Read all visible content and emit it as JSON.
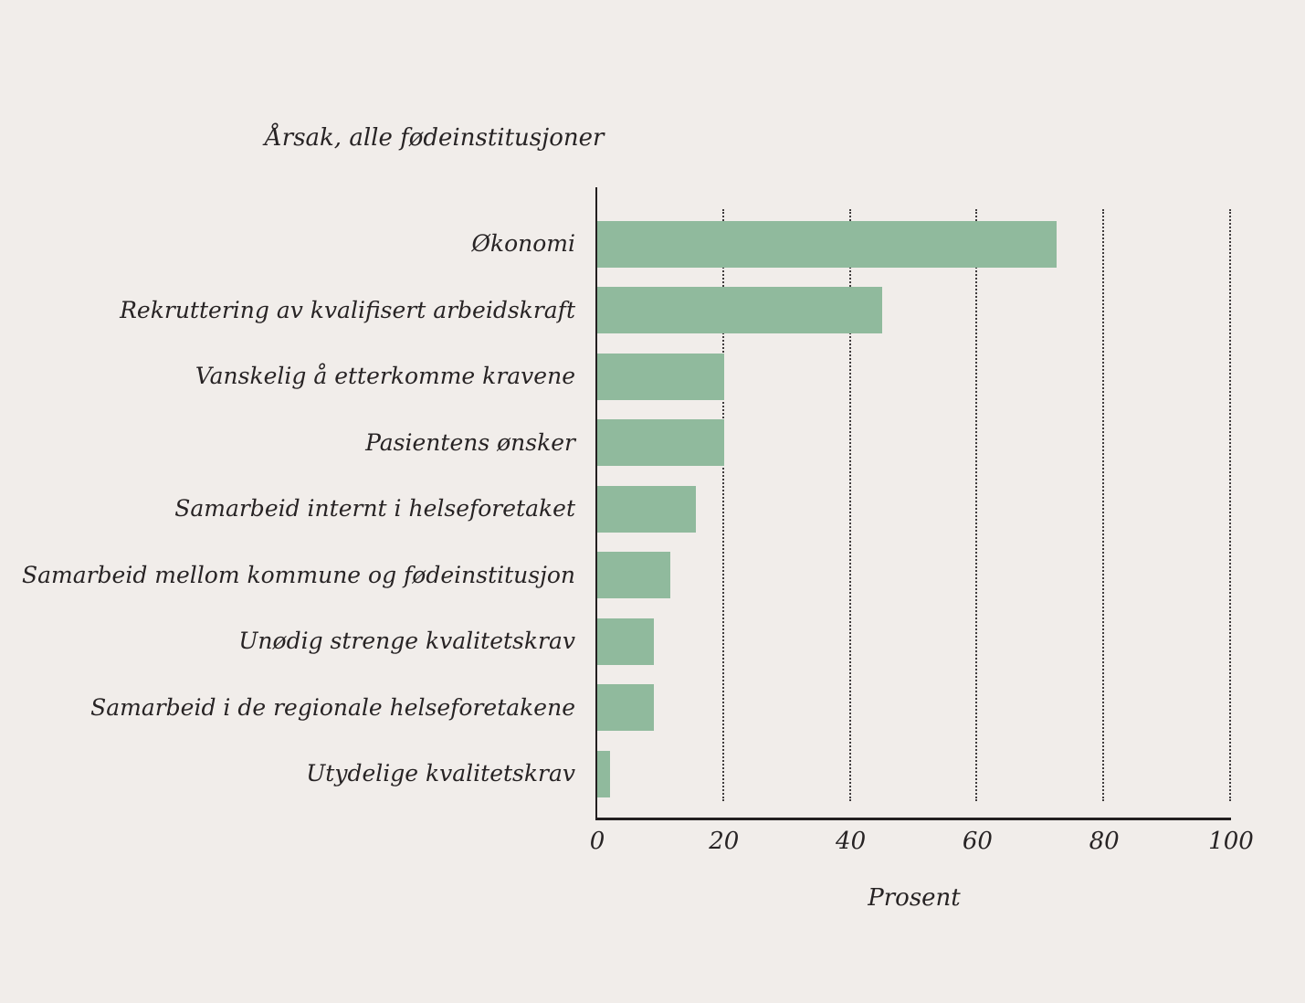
{
  "chart_data": {
    "type": "bar",
    "orientation": "horizontal",
    "title": "Årsak, alle fødeinstitusjoner",
    "xlabel": "Prosent",
    "categories": [
      "Økonomi",
      "Rekruttering av kvalifisert arbeidskraft",
      "Vanskelig å etterkomme kravene",
      "Pasientens ønsker",
      "Samarbeid internt i helseforetaket",
      "Samarbeid mellom kommune og fødeinstitusjon",
      "Unødig strenge kvalitetskrav",
      "Samarbeid i de regionale helseforetakene",
      "Utydelige kvalitetskrav"
    ],
    "values": [
      72.5,
      45,
      20,
      20,
      15.5,
      11.5,
      9,
      9,
      2
    ],
    "xlim": [
      0,
      100
    ],
    "xticks": [
      0,
      20,
      40,
      60,
      80,
      100
    ],
    "grid": "vertical-dotted",
    "legend": "none",
    "colors": {
      "bar": "#90ba9d",
      "background": "#f1edea",
      "text": "#272324",
      "axis": "#231f20",
      "gridline": "#3f3b3c"
    }
  }
}
